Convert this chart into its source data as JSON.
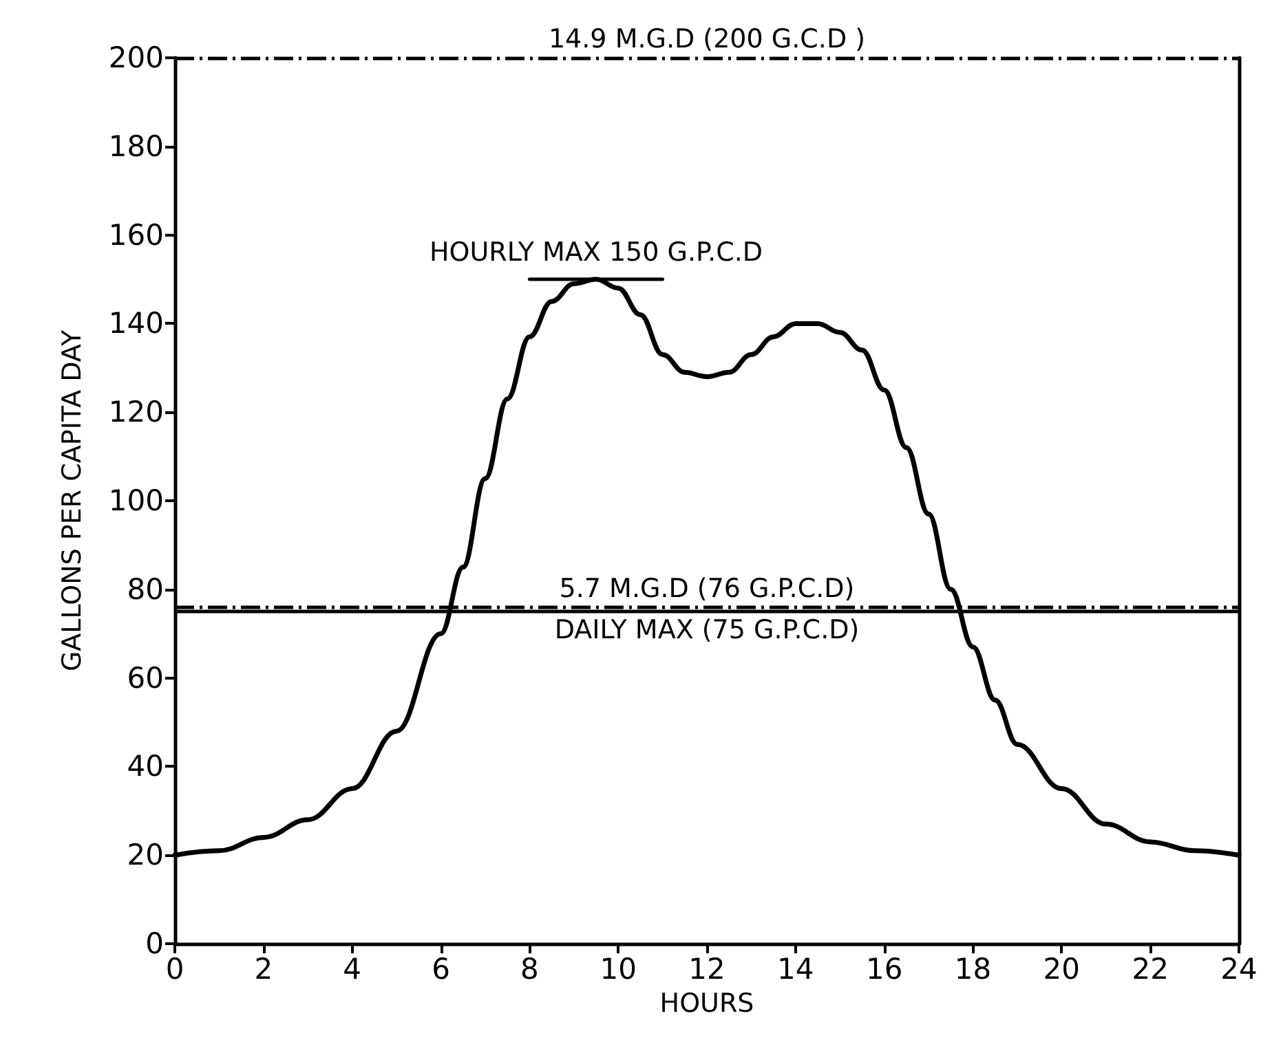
{
  "chart_data": {
    "type": "line",
    "xlabel": "HOURS",
    "ylabel": "GALLONS PER CAPITA DAY",
    "series": [
      {
        "color": "#000000",
        "x": [
          0,
          1,
          2,
          3,
          4,
          5,
          6,
          6.5,
          7,
          7.5,
          8,
          8.5,
          9,
          9.5,
          10,
          10.5,
          11,
          11.5,
          12,
          12.5,
          13,
          13.5,
          14,
          14.5,
          15,
          15.5,
          16,
          16.5,
          17,
          17.5,
          18,
          18.5,
          19,
          20,
          21,
          22,
          23,
          24
        ],
        "values": [
          20,
          21,
          24,
          28,
          35,
          48,
          70,
          85,
          105,
          123,
          137,
          145,
          149,
          150,
          148,
          142,
          133,
          129,
          128,
          129,
          133,
          137,
          140,
          140,
          138,
          134,
          125,
          112,
          97,
          80,
          67,
          55,
          45,
          35,
          27,
          23,
          21,
          20
        ]
      },
      {
        "color": "#000000",
        "x": [
          8,
          11
        ],
        "values": [
          150,
          150
        ]
      }
    ],
    "annotations": [
      {
        "text": "HOURLY MAX 150 G.P.C.D",
        "x": 9.5,
        "y": 150
      }
    ],
    "ref_lines": [
      {
        "axis": "y",
        "value": 200,
        "label": "14.9 M.G.D (200 G.C.D )",
        "line_style": "dashed",
        "color": "#000000"
      },
      {
        "axis": "y",
        "value": 76,
        "label": "5.7 M.G.D (76 G.P.C.D)",
        "line_style": "dashed",
        "color": "#000000"
      },
      {
        "axis": "y",
        "value": 75,
        "label": "DAILY MAX (75 G.P.C.D)",
        "line_style": "solid",
        "color": "#000000"
      }
    ],
    "xlim": [
      0,
      24
    ],
    "xticks": [
      0,
      2,
      4,
      6,
      8,
      10,
      12,
      14,
      16,
      18,
      20,
      22,
      24
    ],
    "ylim": [
      0,
      200
    ],
    "yticks": [
      0,
      20,
      40,
      60,
      80,
      100,
      120,
      140,
      160,
      180,
      200
    ],
    "marker": "none",
    "line_style": "solid"
  }
}
